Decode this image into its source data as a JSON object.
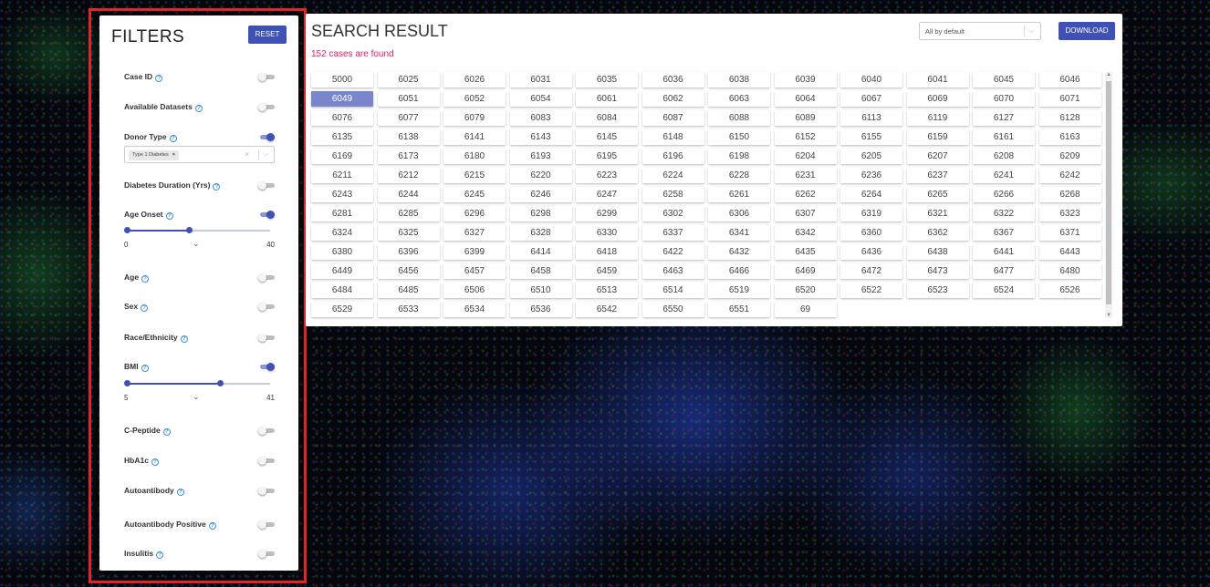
{
  "filters": {
    "title": "FILTERS",
    "reset_label": "RESET",
    "help_glyph": "?",
    "items": [
      {
        "label": "Case ID",
        "on": false
      },
      {
        "label": "Available Datasets",
        "on": false
      },
      {
        "label": "Donor Type",
        "on": true
      },
      {
        "label": "Diabetes Duration (Yrs)",
        "on": false
      },
      {
        "label": "Age Onset",
        "on": true
      },
      {
        "label": "Age",
        "on": false
      },
      {
        "label": "Sex",
        "on": false
      },
      {
        "label": "Race/Ethnicity",
        "on": false
      },
      {
        "label": "BMI",
        "on": true
      },
      {
        "label": "C-Peptide",
        "on": false
      },
      {
        "label": "HbA1c",
        "on": false
      },
      {
        "label": "Autoantibody",
        "on": false
      },
      {
        "label": "Autoantibody Positive",
        "on": false
      },
      {
        "label": "Insulitis",
        "on": false
      }
    ],
    "donor_type_chip": "Type 1 Diabetes",
    "age_onset": {
      "min": "0",
      "max": "40",
      "range_low_fraction": 0.0,
      "range_high_fraction": 0.43
    },
    "bmi": {
      "min": "5",
      "max": "41",
      "range_low_fraction": 0.0,
      "range_high_fraction": 0.65
    }
  },
  "results": {
    "title": "SEARCH RESULT",
    "count_text": "152 cases are found",
    "sort_value": "All by default",
    "download_label": "DOWNLOAD",
    "selected_case": "6049",
    "cases": [
      "5000",
      "6025",
      "6026",
      "6031",
      "6035",
      "6036",
      "6038",
      "6039",
      "6040",
      "6041",
      "6045",
      "6046",
      "6049",
      "6051",
      "6052",
      "6054",
      "6061",
      "6062",
      "6063",
      "6064",
      "6067",
      "6069",
      "6070",
      "6071",
      "6076",
      "6077",
      "6079",
      "6083",
      "6084",
      "6087",
      "6088",
      "6089",
      "6113",
      "6119",
      "6127",
      "6128",
      "6135",
      "6138",
      "6141",
      "6143",
      "6145",
      "6148",
      "6150",
      "6152",
      "6155",
      "6159",
      "6161",
      "6163",
      "6169",
      "6173",
      "6180",
      "6193",
      "6195",
      "6196",
      "6198",
      "6204",
      "6205",
      "6207",
      "6208",
      "6209",
      "6211",
      "6212",
      "6215",
      "6220",
      "6223",
      "6224",
      "6228",
      "6231",
      "6236",
      "6237",
      "6241",
      "6242",
      "6243",
      "6244",
      "6245",
      "6246",
      "6247",
      "6258",
      "6261",
      "6262",
      "6264",
      "6265",
      "6266",
      "6268",
      "6281",
      "6285",
      "6296",
      "6298",
      "6299",
      "6302",
      "6306",
      "6307",
      "6319",
      "6321",
      "6322",
      "6323",
      "6324",
      "6325",
      "6327",
      "6328",
      "6330",
      "6337",
      "6341",
      "6342",
      "6360",
      "6362",
      "6367",
      "6371",
      "6380",
      "6396",
      "6399",
      "6414",
      "6418",
      "6422",
      "6432",
      "6435",
      "6436",
      "6438",
      "6441",
      "6443",
      "6449",
      "6456",
      "6457",
      "6458",
      "6459",
      "6463",
      "6466",
      "6469",
      "6472",
      "6473",
      "6477",
      "6480",
      "6484",
      "6485",
      "6506",
      "6510",
      "6513",
      "6514",
      "6519",
      "6520",
      "6522",
      "6523",
      "6524",
      "6526",
      "6529",
      "6533",
      "6534",
      "6536",
      "6542",
      "6550",
      "6551",
      "69"
    ]
  },
  "colors": {
    "accent": "#3f51b5",
    "selected_case_bg": "#7986cb",
    "count_text": "#e91e63",
    "highlight_frame": "#e0242b"
  }
}
